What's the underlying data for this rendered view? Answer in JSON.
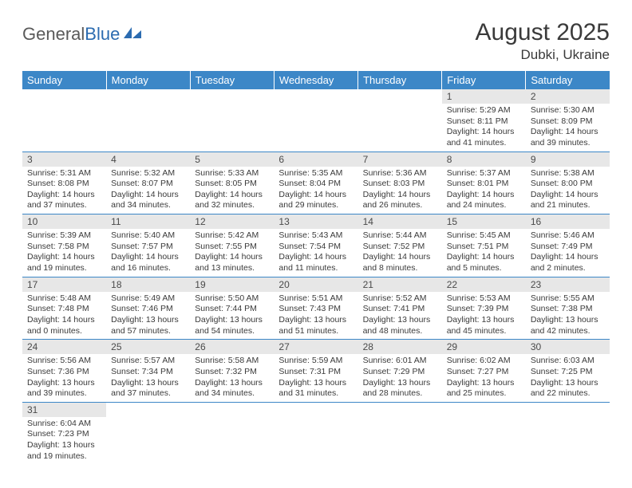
{
  "brand": {
    "part1": "General",
    "part2": "Blue"
  },
  "title": "August 2025",
  "location": "Dubki, Ukraine",
  "header_bg": "#3c87c7",
  "dayheaders": [
    "Sunday",
    "Monday",
    "Tuesday",
    "Wednesday",
    "Thursday",
    "Friday",
    "Saturday"
  ],
  "weeks": [
    [
      null,
      null,
      null,
      null,
      null,
      {
        "n": "1",
        "sr": "5:29 AM",
        "ss": "8:11 PM",
        "dl": "14 hours and 41 minutes."
      },
      {
        "n": "2",
        "sr": "5:30 AM",
        "ss": "8:09 PM",
        "dl": "14 hours and 39 minutes."
      }
    ],
    [
      {
        "n": "3",
        "sr": "5:31 AM",
        "ss": "8:08 PM",
        "dl": "14 hours and 37 minutes."
      },
      {
        "n": "4",
        "sr": "5:32 AM",
        "ss": "8:07 PM",
        "dl": "14 hours and 34 minutes."
      },
      {
        "n": "5",
        "sr": "5:33 AM",
        "ss": "8:05 PM",
        "dl": "14 hours and 32 minutes."
      },
      {
        "n": "6",
        "sr": "5:35 AM",
        "ss": "8:04 PM",
        "dl": "14 hours and 29 minutes."
      },
      {
        "n": "7",
        "sr": "5:36 AM",
        "ss": "8:03 PM",
        "dl": "14 hours and 26 minutes."
      },
      {
        "n": "8",
        "sr": "5:37 AM",
        "ss": "8:01 PM",
        "dl": "14 hours and 24 minutes."
      },
      {
        "n": "9",
        "sr": "5:38 AM",
        "ss": "8:00 PM",
        "dl": "14 hours and 21 minutes."
      }
    ],
    [
      {
        "n": "10",
        "sr": "5:39 AM",
        "ss": "7:58 PM",
        "dl": "14 hours and 19 minutes."
      },
      {
        "n": "11",
        "sr": "5:40 AM",
        "ss": "7:57 PM",
        "dl": "14 hours and 16 minutes."
      },
      {
        "n": "12",
        "sr": "5:42 AM",
        "ss": "7:55 PM",
        "dl": "14 hours and 13 minutes."
      },
      {
        "n": "13",
        "sr": "5:43 AM",
        "ss": "7:54 PM",
        "dl": "14 hours and 11 minutes."
      },
      {
        "n": "14",
        "sr": "5:44 AM",
        "ss": "7:52 PM",
        "dl": "14 hours and 8 minutes."
      },
      {
        "n": "15",
        "sr": "5:45 AM",
        "ss": "7:51 PM",
        "dl": "14 hours and 5 minutes."
      },
      {
        "n": "16",
        "sr": "5:46 AM",
        "ss": "7:49 PM",
        "dl": "14 hours and 2 minutes."
      }
    ],
    [
      {
        "n": "17",
        "sr": "5:48 AM",
        "ss": "7:48 PM",
        "dl": "14 hours and 0 minutes."
      },
      {
        "n": "18",
        "sr": "5:49 AM",
        "ss": "7:46 PM",
        "dl": "13 hours and 57 minutes."
      },
      {
        "n": "19",
        "sr": "5:50 AM",
        "ss": "7:44 PM",
        "dl": "13 hours and 54 minutes."
      },
      {
        "n": "20",
        "sr": "5:51 AM",
        "ss": "7:43 PM",
        "dl": "13 hours and 51 minutes."
      },
      {
        "n": "21",
        "sr": "5:52 AM",
        "ss": "7:41 PM",
        "dl": "13 hours and 48 minutes."
      },
      {
        "n": "22",
        "sr": "5:53 AM",
        "ss": "7:39 PM",
        "dl": "13 hours and 45 minutes."
      },
      {
        "n": "23",
        "sr": "5:55 AM",
        "ss": "7:38 PM",
        "dl": "13 hours and 42 minutes."
      }
    ],
    [
      {
        "n": "24",
        "sr": "5:56 AM",
        "ss": "7:36 PM",
        "dl": "13 hours and 39 minutes."
      },
      {
        "n": "25",
        "sr": "5:57 AM",
        "ss": "7:34 PM",
        "dl": "13 hours and 37 minutes."
      },
      {
        "n": "26",
        "sr": "5:58 AM",
        "ss": "7:32 PM",
        "dl": "13 hours and 34 minutes."
      },
      {
        "n": "27",
        "sr": "5:59 AM",
        "ss": "7:31 PM",
        "dl": "13 hours and 31 minutes."
      },
      {
        "n": "28",
        "sr": "6:01 AM",
        "ss": "7:29 PM",
        "dl": "13 hours and 28 minutes."
      },
      {
        "n": "29",
        "sr": "6:02 AM",
        "ss": "7:27 PM",
        "dl": "13 hours and 25 minutes."
      },
      {
        "n": "30",
        "sr": "6:03 AM",
        "ss": "7:25 PM",
        "dl": "13 hours and 22 minutes."
      }
    ],
    [
      {
        "n": "31",
        "sr": "6:04 AM",
        "ss": "7:23 PM",
        "dl": "13 hours and 19 minutes."
      },
      null,
      null,
      null,
      null,
      null,
      null
    ]
  ],
  "labels": {
    "sunrise": "Sunrise: ",
    "sunset": "Sunset: ",
    "daylight": "Daylight: "
  }
}
